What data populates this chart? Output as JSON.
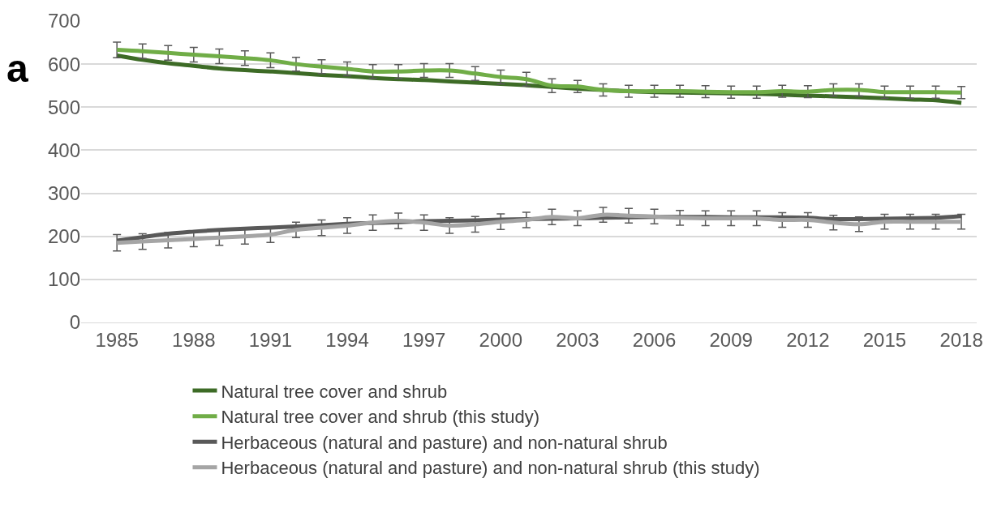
{
  "chart_data": {
    "type": "line",
    "annotations": [
      "a"
    ],
    "x": [
      1985,
      1986,
      1987,
      1988,
      1989,
      1990,
      1991,
      1992,
      1993,
      1994,
      1995,
      1996,
      1997,
      1998,
      1999,
      2000,
      2001,
      2002,
      2003,
      2004,
      2005,
      2006,
      2007,
      2008,
      2009,
      2010,
      2011,
      2012,
      2013,
      2014,
      2015,
      2016,
      2017,
      2018
    ],
    "series": [
      {
        "name": "Natural tree cover and shrub",
        "color": "#3d6b26",
        "values": [
          620,
          610,
          602,
          596,
          590,
          586,
          583,
          579,
          575,
          572,
          568,
          565,
          563,
          560,
          557,
          554,
          551,
          547,
          543,
          540,
          537,
          535,
          534,
          533,
          532,
          531,
          529,
          527,
          525,
          523,
          521,
          518,
          516,
          510
        ]
      },
      {
        "name": "Natural tree cover and shrub (this study)",
        "color": "#70ad47",
        "values": [
          633,
          630,
          626,
          622,
          618,
          614,
          609,
          600,
          594,
          589,
          583,
          583,
          585,
          585,
          578,
          570,
          565,
          550,
          548,
          540,
          537,
          537,
          537,
          536,
          535,
          535,
          537,
          536,
          540,
          540,
          535,
          535,
          535,
          534
        ],
        "errors": [
          18,
          17,
          17,
          17,
          17,
          17,
          17,
          16,
          16,
          16,
          16,
          16,
          16,
          16,
          16,
          16,
          16,
          16,
          14,
          14,
          14,
          14,
          14,
          14,
          14,
          14,
          14,
          14,
          14,
          14,
          14,
          14,
          14,
          14
        ]
      },
      {
        "name": "Herbaceous (natural and pasture) and non-natural shrub",
        "color": "#595959",
        "values": [
          190,
          198,
          206,
          211,
          215,
          218,
          220,
          223,
          226,
          229,
          231,
          233,
          235,
          236,
          237,
          239,
          240,
          241,
          242,
          243,
          244,
          245,
          245,
          245,
          244,
          244,
          244,
          243,
          240,
          240,
          241,
          242,
          243,
          247
        ]
      },
      {
        "name": "Herbaceous (natural and pasture) and non-natural shrub (this study)",
        "color": "#a5a5a5",
        "values": [
          185,
          188,
          191,
          194,
          197,
          200,
          204,
          215,
          220,
          225,
          232,
          236,
          232,
          225,
          228,
          234,
          238,
          245,
          242,
          250,
          248,
          246,
          243,
          242,
          242,
          242,
          238,
          238,
          232,
          228,
          234,
          234,
          234,
          234
        ],
        "errors": [
          19,
          18,
          18,
          18,
          18,
          18,
          18,
          18,
          18,
          18,
          18,
          18,
          18,
          18,
          18,
          18,
          18,
          18,
          17,
          17,
          17,
          17,
          17,
          17,
          17,
          17,
          17,
          17,
          17,
          17,
          17,
          17,
          17,
          17
        ]
      }
    ],
    "xlim": [
      1983.6,
      2018.6
    ],
    "xticks": [
      1985,
      1988,
      1991,
      1994,
      1997,
      2000,
      2003,
      2006,
      2009,
      2012,
      2015,
      2018
    ],
    "ylim": [
      0,
      700
    ],
    "yticks": [
      0,
      100,
      200,
      300,
      400,
      500,
      600,
      700
    ],
    "grid": "y",
    "legend": "bottom",
    "marker": "none",
    "line_style": "solid"
  }
}
